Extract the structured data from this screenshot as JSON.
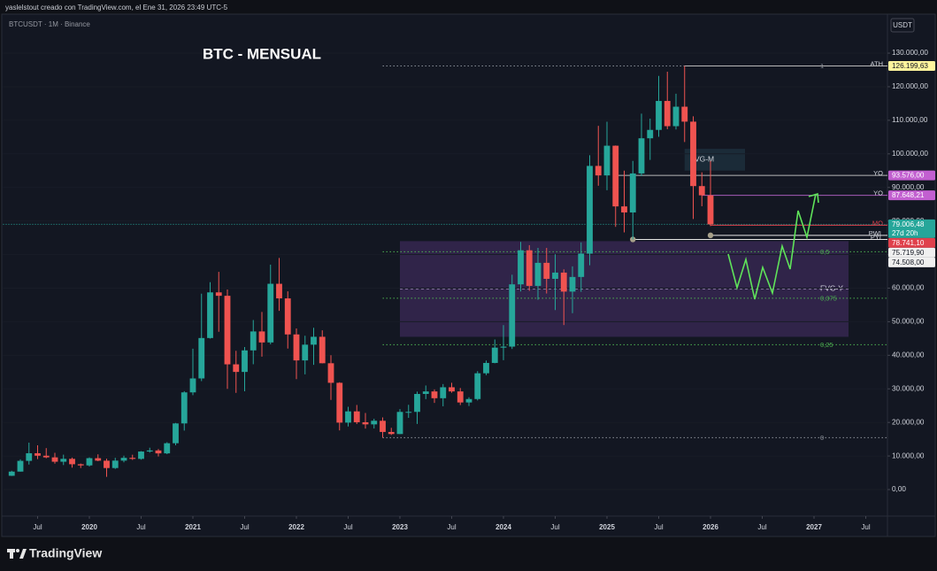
{
  "header": {
    "caption": "yaslelstout creado con TradingView.com, el Ene 31, 2026 23:49 UTC-5"
  },
  "chart_data": {
    "type": "candlestick",
    "symbol": "BTCUSDT · 1M · Binance",
    "title": "BTC - MENSUAL",
    "currency": "USDT",
    "up_color": "#26a69a",
    "down_color": "#ef5350",
    "x": [
      "2019-04",
      "2019-05",
      "2019-06",
      "2019-07",
      "2019-08",
      "2019-09",
      "2019-10",
      "2019-11",
      "2019-12",
      "2020-01",
      "2020-02",
      "2020-03",
      "2020-04",
      "2020-05",
      "2020-06",
      "2020-07",
      "2020-08",
      "2020-09",
      "2020-10",
      "2020-11",
      "2020-12",
      "2021-01",
      "2021-02",
      "2021-03",
      "2021-04",
      "2021-05",
      "2021-06",
      "2021-07",
      "2021-08",
      "2021-09",
      "2021-10",
      "2021-11",
      "2021-12",
      "2022-01",
      "2022-02",
      "2022-03",
      "2022-04",
      "2022-05",
      "2022-06",
      "2022-07",
      "2022-08",
      "2022-09",
      "2022-10",
      "2022-11",
      "2022-12",
      "2023-01",
      "2023-02",
      "2023-03",
      "2023-04",
      "2023-05",
      "2023-06",
      "2023-07",
      "2023-08",
      "2023-09",
      "2023-10",
      "2023-11",
      "2023-12",
      "2024-01",
      "2024-02",
      "2024-03",
      "2024-04",
      "2024-05",
      "2024-06",
      "2024-07",
      "2024-08",
      "2024-09",
      "2024-10",
      "2024-11",
      "2024-12",
      "2025-01",
      "2025-02",
      "2025-03",
      "2025-04",
      "2025-05",
      "2025-06",
      "2025-07",
      "2025-08",
      "2025-09",
      "2025-10",
      "2025-11",
      "2025-12",
      "2026-01"
    ],
    "open": [
      4100,
      5350,
      8550,
      10820,
      10080,
      9590,
      8290,
      9150,
      7540,
      7190,
      9350,
      8600,
      6410,
      8620,
      9450,
      9140,
      11330,
      11650,
      10780,
      13800,
      19700,
      28950,
      33100,
      45140,
      58740,
      57720,
      37300,
      35040,
      41460,
      47100,
      43820,
      61300,
      56950,
      46210,
      38470,
      43160,
      45510,
      37630,
      31800,
      19940,
      23290,
      20050,
      19420,
      20490,
      17160,
      16540,
      23130,
      23140,
      28480,
      29230,
      27210,
      30470,
      29230,
      25940,
      26960,
      34640,
      37720,
      42280,
      42580,
      61130,
      71280,
      60670,
      67540,
      62770,
      64630,
      58970,
      63330,
      70290,
      96410,
      93580,
      102430,
      84350,
      82550,
      94170,
      104640,
      107140,
      115760,
      108250,
      114050,
      109600,
      90400,
      87650
    ],
    "high": [
      5600,
      9000,
      13970,
      13200,
      12350,
      10950,
      10400,
      9520,
      7750,
      9580,
      10500,
      9190,
      9460,
      10080,
      10380,
      11450,
      12470,
      12070,
      14100,
      19860,
      29300,
      41950,
      58350,
      61780,
      64850,
      59600,
      41330,
      42450,
      50500,
      52920,
      67000,
      69000,
      59050,
      47990,
      45820,
      48190,
      47440,
      40020,
      31980,
      24670,
      25200,
      22800,
      21100,
      21480,
      18390,
      23960,
      25250,
      29190,
      31000,
      29820,
      31430,
      31800,
      30250,
      27480,
      35280,
      38450,
      44700,
      48970,
      64000,
      73780,
      72800,
      71980,
      71980,
      70080,
      65600,
      66500,
      73620,
      99590,
      108350,
      109590,
      102500,
      95000,
      97900,
      111980,
      110500,
      123220,
      124470,
      117900,
      126199.63,
      111200,
      94500,
      97900
    ],
    "low": [
      4050,
      5330,
      7450,
      9050,
      9320,
      7710,
      7300,
      6520,
      6420,
      6850,
      8450,
      3780,
      6150,
      8100,
      8830,
      8900,
      11000,
      9850,
      10540,
      13200,
      17570,
      28130,
      32300,
      44950,
      47000,
      30000,
      28800,
      29280,
      37330,
      39600,
      43280,
      53250,
      42000,
      32900,
      34320,
      37150,
      37580,
      26700,
      17620,
      18780,
      19520,
      18150,
      18190,
      15476,
      16260,
      16500,
      21350,
      19550,
      26940,
      25810,
      24800,
      28860,
      25170,
      24900,
      26540,
      34100,
      37620,
      38550,
      41880,
      59000,
      59190,
      56550,
      58400,
      53480,
      49000,
      52550,
      58900,
      66830,
      90500,
      89160,
      78260,
      76610,
      74508,
      93380,
      98200,
      105100,
      107350,
      107250,
      103530,
      80600,
      84400,
      78500
    ],
    "close": [
      5350,
      8550,
      10820,
      10080,
      9590,
      8290,
      9150,
      7540,
      7190,
      9350,
      8600,
      6410,
      8620,
      9450,
      9140,
      11330,
      11650,
      10780,
      13800,
      19700,
      28950,
      33100,
      45140,
      58740,
      57720,
      37300,
      35040,
      41460,
      47100,
      43820,
      61300,
      56950,
      46210,
      38470,
      43160,
      45510,
      37630,
      31800,
      19940,
      23290,
      20050,
      19420,
      20490,
      17160,
      16540,
      23130,
      23140,
      28480,
      29230,
      27210,
      30470,
      29230,
      25940,
      26960,
      34640,
      37720,
      42280,
      42580,
      61130,
      71280,
      60670,
      67540,
      62770,
      64630,
      58970,
      63330,
      70290,
      96410,
      93580,
      102430,
      84350,
      82550,
      94170,
      104640,
      107140,
      115760,
      108250,
      114050,
      109600,
      90400,
      87650,
      79006.48
    ],
    "xlim": [
      "2019-03",
      "2027-09"
    ],
    "ylim": [
      -7120,
      140560
    ],
    "xticks": [
      {
        "value": "2019-07",
        "label": "Jul"
      },
      {
        "value": "2020-01",
        "label": "2020"
      },
      {
        "value": "2020-07",
        "label": "Jul"
      },
      {
        "value": "2021-01",
        "label": "2021"
      },
      {
        "value": "2021-07",
        "label": "Jul"
      },
      {
        "value": "2022-01",
        "label": "2022"
      },
      {
        "value": "2022-07",
        "label": "Jul"
      },
      {
        "value": "2023-01",
        "label": "2023"
      },
      {
        "value": "2023-07",
        "label": "Jul"
      },
      {
        "value": "2024-01",
        "label": "2024"
      },
      {
        "value": "2024-07",
        "label": "Jul"
      },
      {
        "value": "2025-01",
        "label": "2025"
      },
      {
        "value": "2025-07",
        "label": "Jul"
      },
      {
        "value": "2026-01",
        "label": "2026"
      },
      {
        "value": "2026-07",
        "label": "Jul"
      },
      {
        "value": "2027-01",
        "label": "2027"
      },
      {
        "value": "2027-07",
        "label": "Jul"
      }
    ],
    "yticks": [
      {
        "value": 0,
        "label": "0,00"
      },
      {
        "value": 10000,
        "label": "10.000,00"
      },
      {
        "value": 20000,
        "label": "20.000,00"
      },
      {
        "value": 30000,
        "label": "30.000,00"
      },
      {
        "value": 40000,
        "label": "40.000,00"
      },
      {
        "value": 50000,
        "label": "50.000,00"
      },
      {
        "value": 60000,
        "label": "60.000,00"
      },
      {
        "value": 70000,
        "label": "70.000,00"
      },
      {
        "value": 80000,
        "label": "80.000,00"
      },
      {
        "value": 90000,
        "label": "90.000,00"
      },
      {
        "value": 100000,
        "label": "100.000,00"
      },
      {
        "value": 110000,
        "label": "110.000,00"
      },
      {
        "value": 120000,
        "label": "120.000,00"
      },
      {
        "value": 130000,
        "label": "130.000,00"
      }
    ],
    "last_price": {
      "value": 79006.48,
      "label": "79.006,48",
      "countdown": "27d 20h",
      "color": "#26a69a"
    },
    "levels": [
      {
        "name": "ATH",
        "value": 126199.63,
        "label": "126.199,63",
        "color": "#fff59d",
        "text_color": "#131722",
        "line_color": "#b8b8b8",
        "start": "2025-10"
      },
      {
        "name": "YO",
        "value": 93576.0,
        "label": "93.576,00",
        "color": "#c25fd0",
        "text_color": "#ffffff",
        "line_color": "#b8b8b8",
        "start": "2025-02"
      },
      {
        "name": "YO",
        "value": 87648.21,
        "label": "87.648,21",
        "color": "#c25fd0",
        "text_color": "#ffffff",
        "line_color": "#a65bb8",
        "start": "2025-12"
      },
      {
        "name": "MO",
        "value": 78741.1,
        "label": "78.741,10",
        "color": "#e0414c",
        "text_color": "#ffffff",
        "line_color": "#e0414c",
        "start": "2026-01"
      },
      {
        "name": "PWL",
        "value": 75719.9,
        "label": "75.719,90",
        "color": "#f0f0f0",
        "text_color": "#131722",
        "line_color": "#e6e6e6",
        "start": "2026-01"
      },
      {
        "name": "PYL",
        "value": 74508.0,
        "label": "74.508,00",
        "color": "#f0f0f0",
        "text_color": "#131722",
        "line_color": "#e6e6e6",
        "start": "2025-04"
      }
    ],
    "fib": {
      "start": "2022-11",
      "levels": [
        {
          "ratio": 1,
          "price": 126199.63,
          "label": "1",
          "color": "#8a8f98"
        },
        {
          "ratio": 0.5,
          "price": 70838,
          "label": "0,5",
          "color": "#4caf50"
        },
        {
          "ratio": 0.375,
          "price": 56997,
          "label": "0,375",
          "color": "#4caf50"
        },
        {
          "ratio": 0.25,
          "price": 43157,
          "label": "0,25",
          "color": "#4caf50"
        },
        {
          "ratio": 0,
          "price": 15476,
          "label": "0",
          "color": "#8a8f98"
        }
      ]
    },
    "zones": [
      {
        "name": "FVG-Y",
        "start": "2023-01",
        "end": "2027-05",
        "top": 74000,
        "bottom": 45500,
        "mid": 59750,
        "color": "#3b2a57"
      },
      {
        "name": "FVG-M",
        "start": "2025-10",
        "end": "2026-05",
        "top": 101500,
        "bottom": 95000,
        "color": "#1f3340"
      }
    ]
  },
  "footer": {
    "brand": "TradingView"
  }
}
